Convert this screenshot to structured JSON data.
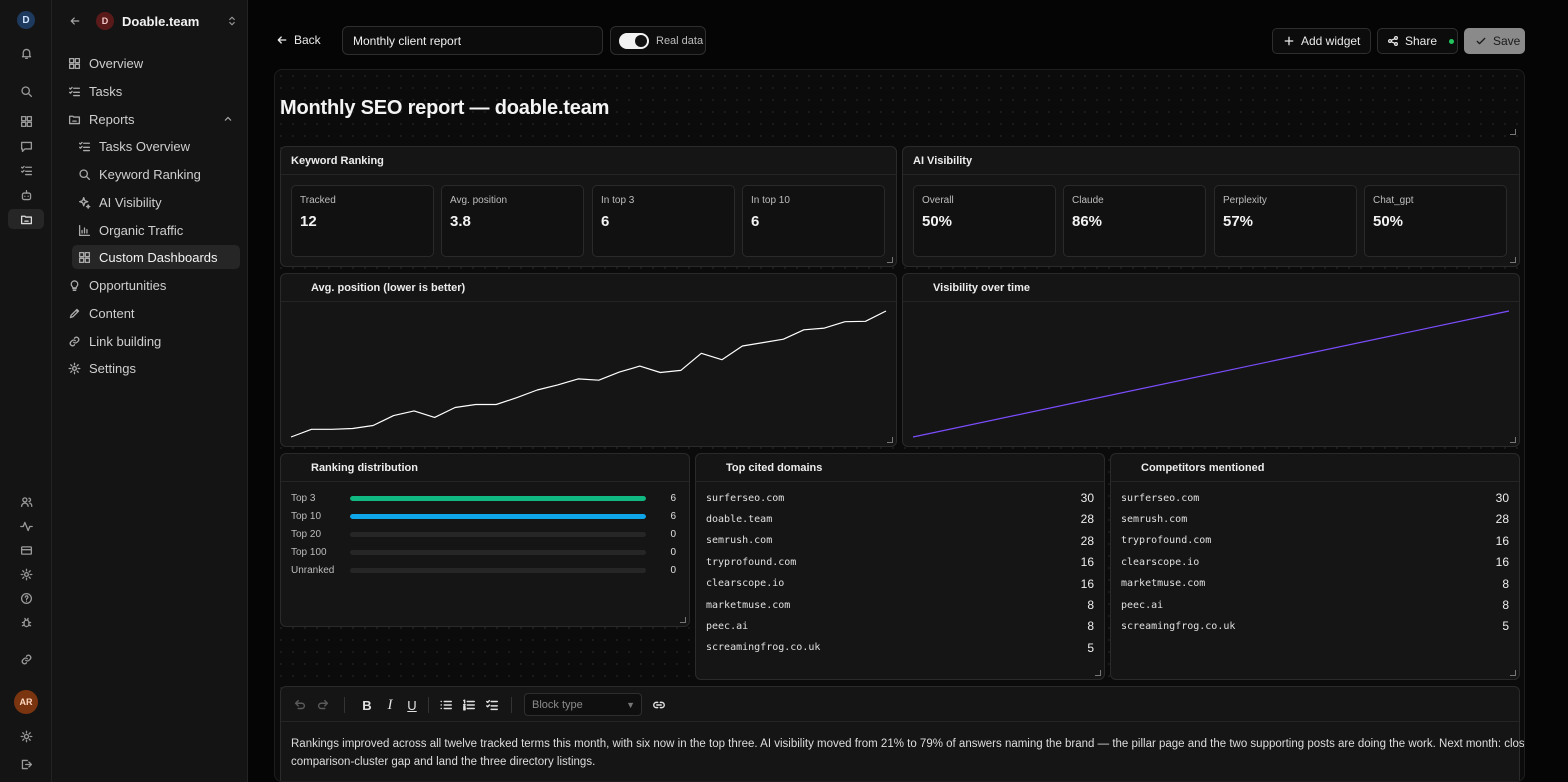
{
  "rail": {
    "logo": "D",
    "avatar": "AR"
  },
  "sidebar": {
    "workspace": {
      "avatar": "D",
      "name": "Doable.team"
    },
    "items": [
      {
        "label": "Overview"
      },
      {
        "label": "Tasks"
      },
      {
        "label": "Reports"
      },
      {
        "label": "Tasks Overview"
      },
      {
        "label": "Keyword Ranking"
      },
      {
        "label": "AI Visibility"
      },
      {
        "label": "Organic Traffic"
      },
      {
        "label": "Custom Dashboards"
      },
      {
        "label": "Opportunities"
      },
      {
        "label": "Content"
      },
      {
        "label": "Link building"
      },
      {
        "label": "Settings"
      }
    ]
  },
  "topbar": {
    "back_label": "Back",
    "title_value": "Monthly client report",
    "toggle_label": "Real data",
    "toggle_on": true,
    "add_widget_label": "Add widget",
    "share_label": "Share",
    "save_label": "Save"
  },
  "report": {
    "title": "Monthly SEO report — doable.team",
    "keyword_ranking": {
      "title": "Keyword Ranking",
      "stats": [
        {
          "label": "Tracked",
          "value": "12"
        },
        {
          "label": "Avg. position",
          "value": "3.8"
        },
        {
          "label": "In top 3",
          "value": "6"
        },
        {
          "label": "In top 10",
          "value": "6"
        }
      ]
    },
    "ai_visibility": {
      "title": "AI Visibility",
      "stats": [
        {
          "label": "Overall",
          "value": "50%"
        },
        {
          "label": "Claude",
          "value": "86%"
        },
        {
          "label": "Perplexity",
          "value": "57%"
        },
        {
          "label": "Chat_gpt",
          "value": "50%"
        }
      ]
    },
    "avg_position_chart": {
      "title": "Avg. position (lower is better)"
    },
    "visibility_chart": {
      "title": "Visibility over time"
    },
    "ranking_distribution": {
      "title": "Ranking distribution",
      "rows": [
        {
          "label": "Top 3",
          "value": "6",
          "fill": 1.0,
          "color": "#10b981"
        },
        {
          "label": "Top 10",
          "value": "6",
          "fill": 1.0,
          "color": "#0ea5e9"
        },
        {
          "label": "Top 20",
          "value": "0",
          "fill": 0,
          "color": "#0ea5e9"
        },
        {
          "label": "Top 100",
          "value": "0",
          "fill": 0,
          "color": "#0ea5e9"
        },
        {
          "label": "Unranked",
          "value": "0",
          "fill": 0,
          "color": "#0ea5e9"
        }
      ]
    },
    "top_cited_domains": {
      "title": "Top cited domains",
      "rows": [
        {
          "domain": "surferseo.com",
          "count": "30"
        },
        {
          "domain": "doable.team",
          "count": "28"
        },
        {
          "domain": "semrush.com",
          "count": "28"
        },
        {
          "domain": "tryprofound.com",
          "count": "16"
        },
        {
          "domain": "clearscope.io",
          "count": "16"
        },
        {
          "domain": "marketmuse.com",
          "count": "8"
        },
        {
          "domain": "peec.ai",
          "count": "8"
        },
        {
          "domain": "screamingfrog.co.uk",
          "count": "5"
        }
      ]
    },
    "competitors_mentioned": {
      "title": "Competitors mentioned",
      "rows": [
        {
          "domain": "surferseo.com",
          "count": "30"
        },
        {
          "domain": "semrush.com",
          "count": "28"
        },
        {
          "domain": "tryprofound.com",
          "count": "16"
        },
        {
          "domain": "clearscope.io",
          "count": "16"
        },
        {
          "domain": "marketmuse.com",
          "count": "8"
        },
        {
          "domain": "peec.ai",
          "count": "8"
        },
        {
          "domain": "screamingfrog.co.uk",
          "count": "5"
        }
      ]
    },
    "editor": {
      "block_type_placeholder": "Block type",
      "body": "Rankings improved across all twelve tracked terms this month, with six now in the top three. AI visibility moved from 21% to 79% of answers naming the brand — the pillar page and the two supporting posts are doing the work. Next month: close the comparison-cluster gap and land the three directory listings."
    }
  },
  "chart_data": [
    {
      "type": "line",
      "title": "Avg. position (lower is better)",
      "series": [
        {
          "values": [
            1.0,
            2.8,
            2.8,
            3.0,
            3.7,
            6.0,
            7.1,
            5.6,
            7.9,
            8.6,
            8.6,
            10.2,
            12.0,
            13.2,
            14.6,
            14.3,
            16.2,
            17.6,
            16.1,
            16.6,
            20.6,
            19.1,
            22.3,
            23.1,
            23.9,
            26.1,
            26.5,
            28.0,
            28.1,
            30.5
          ],
          "color": "#ffffff"
        }
      ]
    },
    {
      "type": "line",
      "title": "Visibility over time",
      "series": [
        {
          "values": [
            21,
            79
          ],
          "color": "#7c4dff"
        }
      ]
    }
  ]
}
